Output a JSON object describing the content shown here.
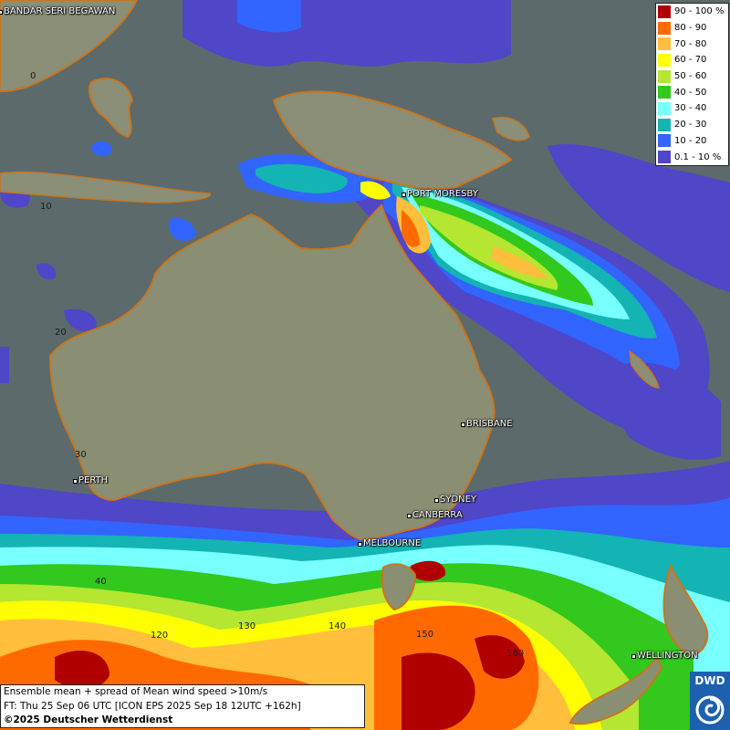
{
  "map": {
    "cities": [
      {
        "name": "BANDAR SERI BEGAWAN",
        "id": "bandar-seri-begawan"
      },
      {
        "name": "PORT MORESBY",
        "id": "port-moresby"
      },
      {
        "name": "BRISBANE",
        "id": "brisbane"
      },
      {
        "name": "PERTH",
        "id": "perth"
      },
      {
        "name": "SYDNEY",
        "id": "sydney"
      },
      {
        "name": "CANBERRA",
        "id": "canberra"
      },
      {
        "name": "MELBOURNE",
        "id": "melbourne"
      },
      {
        "name": "WELLINGTON",
        "id": "wellington"
      }
    ],
    "grid_labels": [
      "0",
      "10",
      "20",
      "30",
      "40",
      "120",
      "130",
      "140",
      "150",
      "160"
    ]
  },
  "legend": {
    "items": [
      {
        "label": "90 - 100 %",
        "color": "#b00000"
      },
      {
        "label": "80 - 90",
        "color": "#ff6a00"
      },
      {
        "label": "70 - 80",
        "color": "#ffbe3c"
      },
      {
        "label": "60 - 70",
        "color": "#ffff00"
      },
      {
        "label": "50 - 60",
        "color": "#b4e632"
      },
      {
        "label": "40 - 50",
        "color": "#32c81e"
      },
      {
        "label": "30 - 40",
        "color": "#78ffff"
      },
      {
        "label": "20 - 30",
        "color": "#14b4b4"
      },
      {
        "label": "10 - 20",
        "color": "#3264ff"
      },
      {
        "label": "0.1 - 10 %",
        "color": "#5046c8"
      }
    ]
  },
  "info": {
    "line1": "Ensemble mean + spread of Mean wind speed >10m/s",
    "line2": "FT: Thu 25 Sep 06 UTC [ICON EPS 2025 Sep 18 12UTC +162h]",
    "copyright": "©2025 Deutscher Wetterdienst"
  },
  "logo": {
    "text": "DWD"
  }
}
